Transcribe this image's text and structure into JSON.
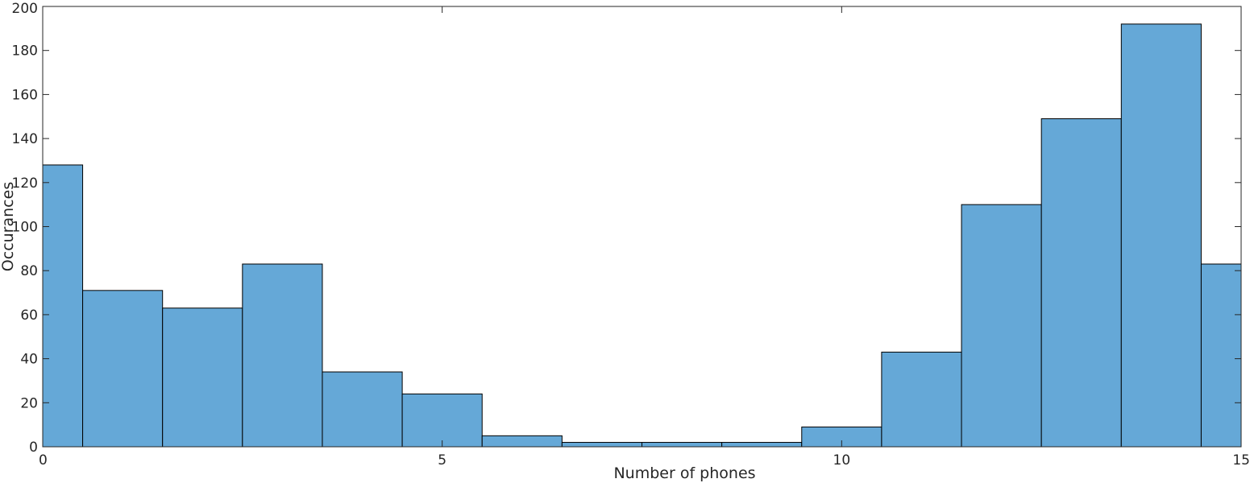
{
  "chart_data": {
    "type": "bar",
    "title": "",
    "xlabel": "Number of phones",
    "ylabel": "Occurances",
    "bin_width": 1,
    "x": [
      0,
      1,
      2,
      3,
      4,
      5,
      6,
      7,
      8,
      9,
      10,
      11,
      12,
      13,
      14,
      15
    ],
    "values": [
      128,
      71,
      63,
      83,
      34,
      24,
      5,
      2,
      2,
      2,
      9,
      43,
      110,
      149,
      192,
      83
    ],
    "xlim": [
      0,
      15
    ],
    "ylim": [
      0,
      200
    ],
    "xticks": [
      0,
      5,
      10,
      15
    ],
    "yticks": [
      0,
      20,
      40,
      60,
      80,
      100,
      120,
      140,
      160,
      180,
      200
    ],
    "grid": false,
    "bar_color": "#65a8d7",
    "edge_color": "#000000"
  }
}
